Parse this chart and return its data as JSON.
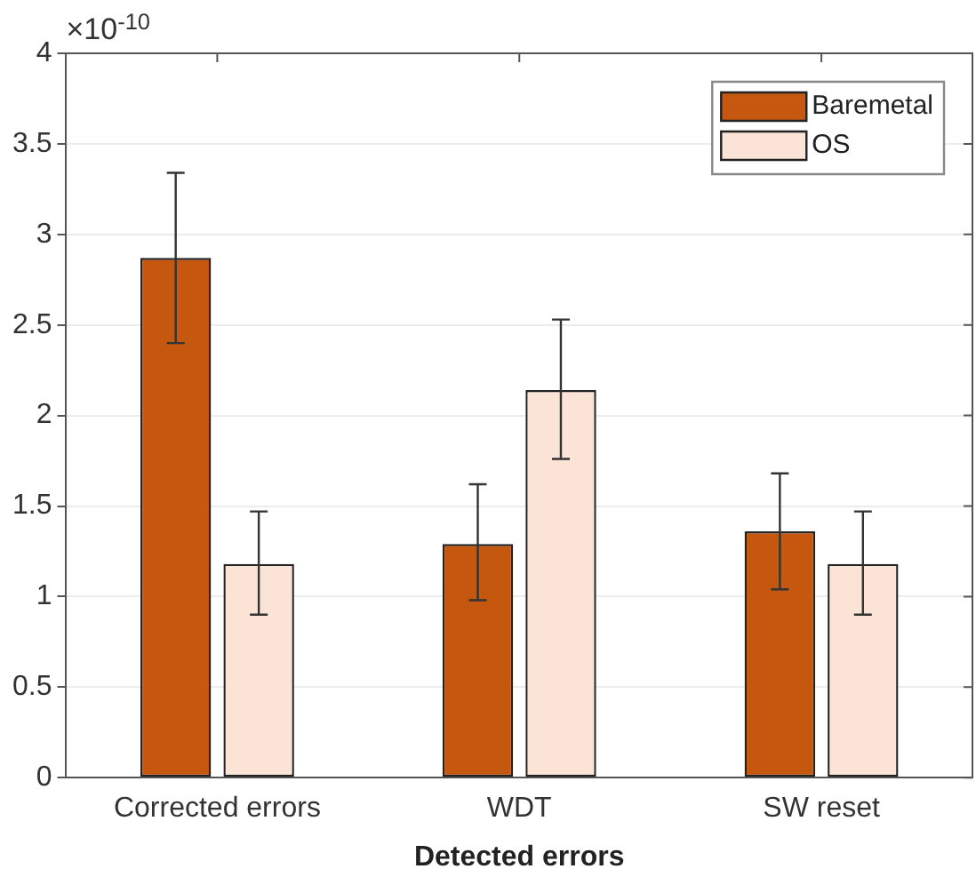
{
  "chart_data": {
    "type": "bar",
    "xlabel": "Detected errors",
    "categories": [
      "Corrected errors",
      "WDT",
      "SW reset"
    ],
    "series": [
      {
        "name": "Baremetal",
        "color": "#c5570f",
        "values": [
          2.87,
          1.29,
          1.36
        ],
        "errors": [
          [
            2.4,
            3.34
          ],
          [
            0.98,
            1.62
          ],
          [
            1.04,
            1.68
          ]
        ]
      },
      {
        "name": "OS",
        "color": "#fbe3d6",
        "values": [
          1.18,
          2.14,
          1.18
        ],
        "errors": [
          [
            0.9,
            1.47
          ],
          [
            1.76,
            2.53
          ],
          [
            0.9,
            1.47
          ]
        ]
      }
    ],
    "ylim": [
      0,
      4
    ],
    "yticks": [
      0,
      0.5,
      1,
      1.5,
      2,
      2.5,
      3,
      3.5,
      4
    ],
    "grid": "y",
    "legend": "top right",
    "annotations": [
      "×10$^{-10}$"
    ]
  }
}
